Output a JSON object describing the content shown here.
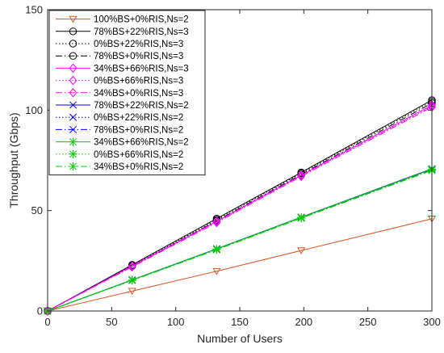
{
  "chart_data": {
    "type": "line",
    "title": "",
    "xlabel": "Number of Users",
    "ylabel": "Throughput (Gbps)",
    "xlim": [
      0,
      300
    ],
    "ylim": [
      0,
      150
    ],
    "x": [
      0,
      66,
      132,
      198,
      300
    ],
    "xticks": [
      "0",
      "50",
      "100",
      "150",
      "200",
      "250",
      "300"
    ],
    "yticks": [
      "0",
      "50",
      "100",
      "150"
    ],
    "grid": false,
    "legend_position": "top-left",
    "series": [
      {
        "name": "100%BS+0%RIS,Ns=2",
        "color": "#d9531e",
        "dash": "solid",
        "marker": "triangle-down",
        "values": [
          0,
          9.9,
          19.8,
          30.1,
          45.9
        ]
      },
      {
        "name": "78%BS+22%RIS,Ns=3",
        "color": "#000000",
        "dash": "solid",
        "marker": "circle",
        "values": [
          0,
          23.0,
          46.0,
          69.0,
          105.0
        ]
      },
      {
        "name": "0%BS+22%RIS,Ns=3",
        "color": "#000000",
        "dash": "dotted",
        "marker": "circle",
        "values": [
          0,
          22.6,
          45.4,
          68.6,
          104.3
        ]
      },
      {
        "name": "78%BS+0%RIS,Ns=3",
        "color": "#000000",
        "dash": "dashdot",
        "marker": "circle",
        "values": [
          0,
          22.3,
          44.9,
          68.0,
          103.5
        ]
      },
      {
        "name": "34%BS+66%RIS,Ns=3",
        "color": "#ff00ff",
        "dash": "solid",
        "marker": "diamond",
        "values": [
          0,
          22.4,
          44.6,
          67.6,
          102.5
        ]
      },
      {
        "name": "0%BS+66%RIS,Ns=3",
        "color": "#ff00ff",
        "dash": "dotted",
        "marker": "diamond",
        "values": [
          0,
          22.2,
          44.3,
          67.3,
          102.0
        ]
      },
      {
        "name": "34%BS+0%RIS,Ns=3",
        "color": "#ff00ff",
        "dash": "dashdot",
        "marker": "diamond",
        "values": [
          0,
          22.0,
          44.0,
          67.0,
          101.5
        ]
      },
      {
        "name": "78%BS+22%RIS,Ns=2",
        "color": "#0000ff",
        "dash": "solid",
        "marker": "x",
        "values": [
          0,
          15.5,
          31.0,
          46.7,
          70.8
        ]
      },
      {
        "name": "0%BS+22%RIS,Ns=2",
        "color": "#0000ff",
        "dash": "dotted",
        "marker": "x",
        "values": [
          0,
          15.4,
          30.8,
          46.5,
          70.5
        ]
      },
      {
        "name": "78%BS+0%RIS,Ns=2",
        "color": "#0000ff",
        "dash": "dashdot",
        "marker": "x",
        "values": [
          0,
          15.3,
          30.6,
          46.3,
          70.2
        ]
      },
      {
        "name": "34%BS+66%RIS,Ns=2",
        "color": "#00cc00",
        "dash": "solid",
        "marker": "asterisk",
        "values": [
          0,
          15.4,
          30.9,
          46.6,
          70.6
        ]
      },
      {
        "name": "0%BS+66%RIS,Ns=2",
        "color": "#00cc00",
        "dash": "dotted",
        "marker": "asterisk",
        "values": [
          0,
          15.3,
          30.7,
          46.4,
          70.3
        ]
      },
      {
        "name": "34%BS+0%RIS,Ns=2",
        "color": "#00cc00",
        "dash": "dashdot",
        "marker": "asterisk",
        "values": [
          0,
          15.2,
          30.5,
          46.2,
          70.0
        ]
      }
    ]
  }
}
